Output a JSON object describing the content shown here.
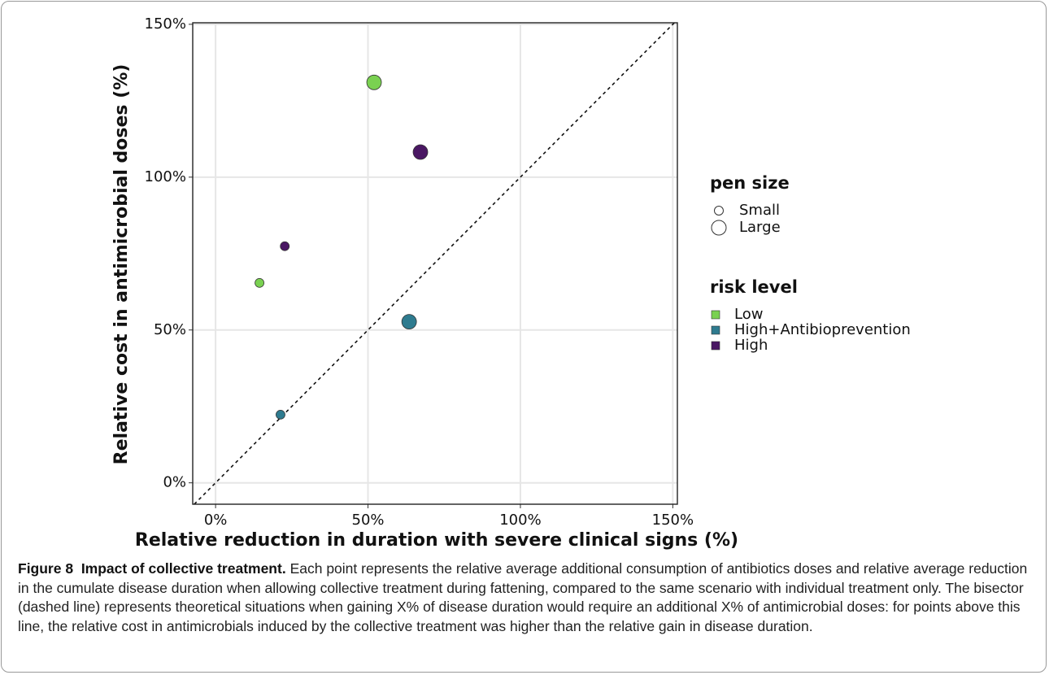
{
  "chart_data": {
    "type": "scatter",
    "x_label": "Relative reduction in duration with severe clinical signs (%)",
    "y_label": "Relative cost in antimicrobial doses (%)",
    "xlim": [
      -7.5,
      151.5
    ],
    "ylim": [
      -7,
      150.5
    ],
    "xticks": [
      {
        "value": 0,
        "label": "0%"
      },
      {
        "value": 50,
        "label": "50%"
      },
      {
        "value": 100,
        "label": "100%"
      },
      {
        "value": 150,
        "label": "150%"
      }
    ],
    "yticks": [
      {
        "value": 0,
        "label": "0%"
      },
      {
        "value": 50,
        "label": "50%"
      },
      {
        "value": 100,
        "label": "100%"
      },
      {
        "value": 150,
        "label": "150%"
      }
    ],
    "grid": true,
    "size_legend": {
      "title": "pen size",
      "entries": [
        "Small",
        "Large"
      ]
    },
    "color_legend_title": "risk level",
    "series": [
      {
        "name": "Low",
        "color": "#7ad151",
        "x": [
          52,
          14.4
        ],
        "values": [
          131,
          65.4
        ],
        "pen_size": [
          "Large",
          "Small"
        ]
      },
      {
        "name": "High+Antibioprevention",
        "color": "#2e7b8f",
        "x": [
          63.5,
          21.3
        ],
        "values": [
          52.7,
          22.3
        ],
        "pen_size": [
          "Large",
          "Small"
        ]
      },
      {
        "name": "High",
        "color": "#4a1763",
        "x": [
          67.2,
          22.7
        ],
        "values": [
          108.2,
          77.4
        ],
        "pen_size": [
          "Large",
          "Small"
        ]
      }
    ]
  },
  "caption": {
    "label": "Figure 8",
    "title": "Impact of collective treatment.",
    "text": "Each point represents the relative average additional consumption of antibiotics doses and relative average reduction in the cumulate disease duration when allowing collective treatment during fattening, compared to the same scenario with individual treatment only. The bisector (dashed line) represents theoretical situations when gaining X% of disease duration would require an additional X% of antimicrobial doses: for points above this line, the relative cost in antimicrobials induced by the collective treatment was higher than the relative gain in disease duration."
  }
}
